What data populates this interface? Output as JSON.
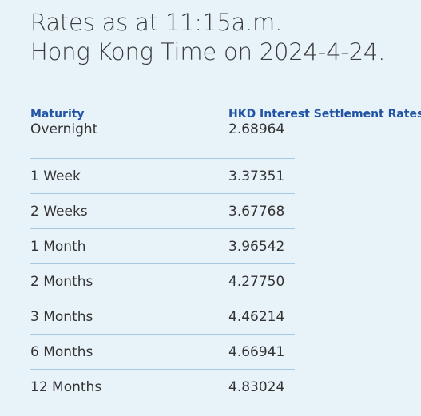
{
  "heading": {
    "line1": "Rates as at 11:15a.m.",
    "line2": "Hong Kong Time on 2024-4-24."
  },
  "table": {
    "columns": {
      "maturity": "Maturity",
      "rate": "HKD Interest Settlement Rates"
    },
    "rows": [
      {
        "maturity": "Overnight",
        "rate": "2.68964"
      },
      {
        "maturity": "1 Week",
        "rate": "3.37351"
      },
      {
        "maturity": "2 Weeks",
        "rate": "3.67768"
      },
      {
        "maturity": "1 Month",
        "rate": "3.96542"
      },
      {
        "maturity": "2 Months",
        "rate": "4.27750"
      },
      {
        "maturity": "3 Months",
        "rate": "4.46214"
      },
      {
        "maturity": "6 Months",
        "rate": "4.66941"
      },
      {
        "maturity": "12 Months",
        "rate": "4.83024"
      }
    ]
  }
}
